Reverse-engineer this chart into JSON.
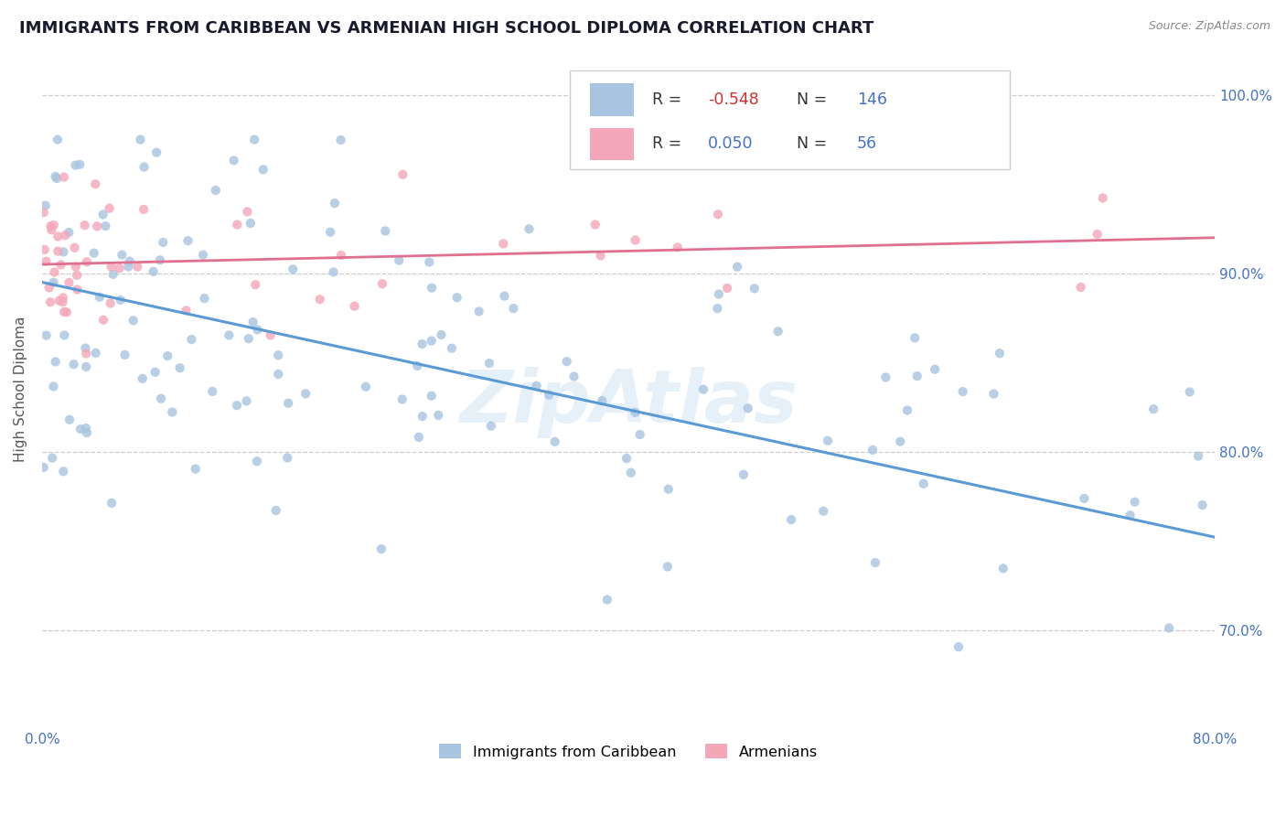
{
  "title": "IMMIGRANTS FROM CARIBBEAN VS ARMENIAN HIGH SCHOOL DIPLOMA CORRELATION CHART",
  "source_text": "Source: ZipAtlas.com",
  "ylabel": "High School Diploma",
  "legend_labels": [
    "Immigrants from Caribbean",
    "Armenians"
  ],
  "r_caribbean": -0.548,
  "n_caribbean": 146,
  "r_armenian": 0.05,
  "n_armenian": 56,
  "color_caribbean": "#a8c4e0",
  "color_armenian": "#f4a7b9",
  "trendline_caribbean": "#5b9bd5",
  "trendline_armenian": "#e07090",
  "background_color": "#ffffff",
  "watermark": "ZipAtlas",
  "xlim": [
    0.0,
    0.8
  ],
  "ylim": [
    0.645,
    1.025
  ],
  "x_ticks": [
    0.0,
    0.1,
    0.2,
    0.3,
    0.4,
    0.5,
    0.6,
    0.7,
    0.8
  ],
  "x_tick_labels": [
    "0.0%",
    "",
    "",
    "",
    "",
    "",
    "",
    "",
    "80.0%"
  ],
  "y_ticks": [
    0.7,
    0.8,
    0.9,
    1.0
  ],
  "y_tick_labels": [
    "70.0%",
    "80.0%",
    "90.0%",
    "100.0%"
  ],
  "title_fontsize": 13,
  "axis_fontsize": 11,
  "tick_fontsize": 11,
  "dot_size": 55,
  "dot_alpha": 0.8,
  "grid_color": "#cccccc",
  "grid_style": "--",
  "tick_color": "#4472c4",
  "legend_text_color": "#333333",
  "legend_value_color": "#4472c4"
}
